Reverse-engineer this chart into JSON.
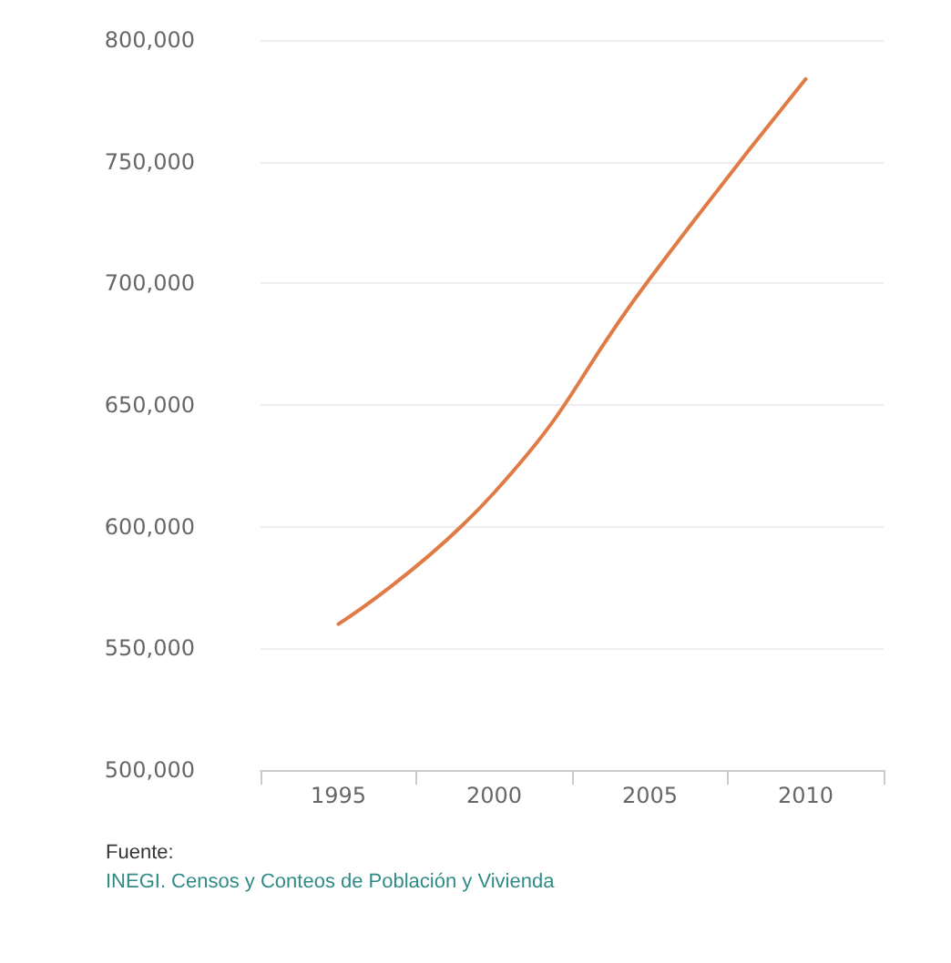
{
  "chart_data": {
    "type": "line",
    "categories": [
      "1995",
      "2000",
      "2005",
      "2010"
    ],
    "series": [
      {
        "color": "#e07b45",
        "values": [
          560000,
          614000,
          702000,
          784000
        ]
      }
    ],
    "ylim": [
      500000,
      800000
    ],
    "yticks": [
      {
        "value": 500000,
        "label": "500,000"
      },
      {
        "value": 550000,
        "label": "550,000"
      },
      {
        "value": 600000,
        "label": "600,000"
      },
      {
        "value": 650000,
        "label": "650,000"
      },
      {
        "value": 700000,
        "label": "700,000"
      },
      {
        "value": 750000,
        "label": "750,000"
      },
      {
        "value": 800000,
        "label": "800,000"
      }
    ],
    "grid": "y",
    "marker": "none",
    "line_style": "solid",
    "annotations": [
      "Fuente:",
      "INEGI. Censos y Conteos de Población y Vivienda"
    ]
  }
}
